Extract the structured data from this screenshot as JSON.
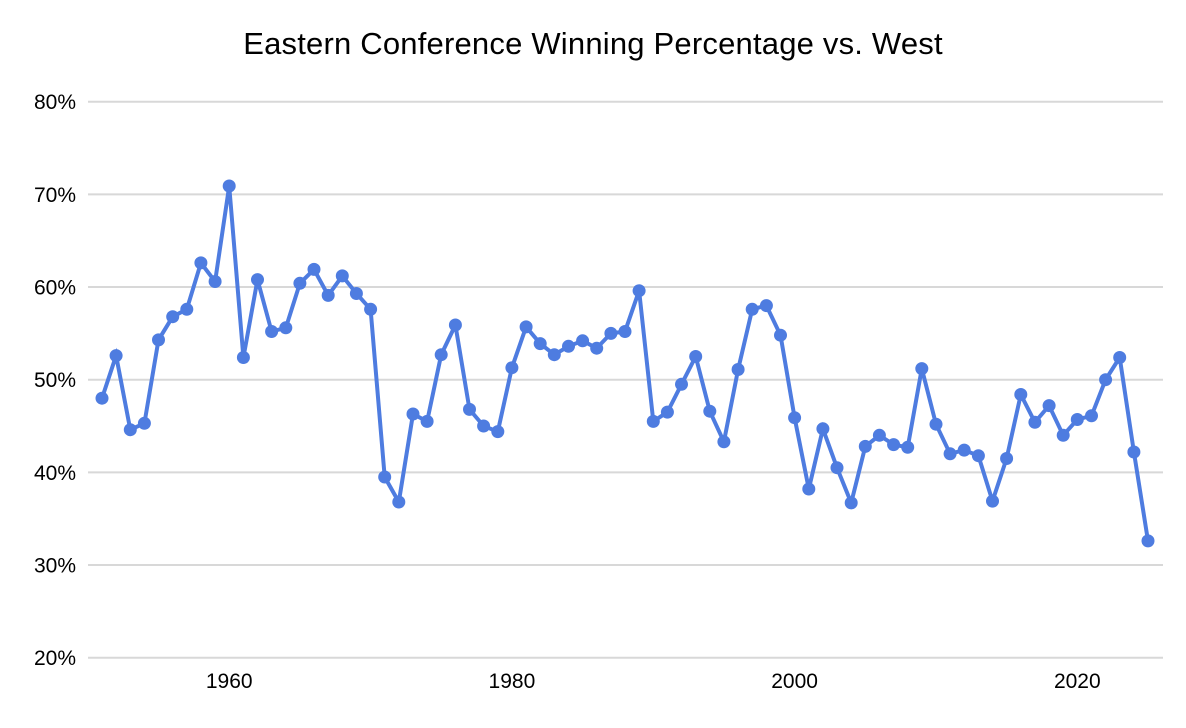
{
  "chart_data": {
    "type": "line",
    "title": "Eastern Conference Winning Percentage vs. West",
    "xlabel": "",
    "ylabel": "",
    "unit": "%",
    "series_name": "Eastern Conference winning percentage vs. West",
    "x": [
      1951,
      1952,
      1953,
      1954,
      1955,
      1956,
      1957,
      1958,
      1959,
      1960,
      1961,
      1962,
      1963,
      1964,
      1965,
      1966,
      1967,
      1968,
      1969,
      1970,
      1971,
      1972,
      1973,
      1974,
      1975,
      1976,
      1977,
      1978,
      1979,
      1980,
      1981,
      1982,
      1983,
      1984,
      1985,
      1986,
      1987,
      1988,
      1989,
      1990,
      1991,
      1992,
      1993,
      1994,
      1995,
      1996,
      1997,
      1998,
      1999,
      2000,
      2001,
      2002,
      2003,
      2004,
      2005,
      2006,
      2007,
      2008,
      2009,
      2010,
      2011,
      2012,
      2013,
      2014,
      2015,
      2016,
      2017,
      2018,
      2019,
      2020,
      2021,
      2022,
      2023,
      2024,
      2025
    ],
    "values": [
      48.0,
      52.6,
      44.6,
      45.3,
      54.3,
      56.8,
      57.6,
      62.6,
      60.6,
      70.9,
      52.4,
      60.8,
      55.2,
      55.6,
      60.4,
      61.9,
      59.1,
      61.2,
      59.3,
      57.6,
      39.5,
      36.8,
      46.3,
      45.5,
      52.7,
      55.9,
      46.8,
      45.0,
      44.4,
      51.3,
      55.7,
      53.9,
      52.7,
      53.6,
      54.2,
      53.4,
      55.0,
      55.2,
      59.6,
      45.5,
      46.5,
      49.5,
      52.5,
      46.6,
      43.3,
      51.1,
      57.6,
      58.0,
      54.8,
      45.9,
      38.2,
      44.7,
      40.5,
      36.7,
      42.8,
      44.0,
      43.0,
      42.7,
      51.2,
      45.2,
      42.0,
      42.4,
      41.8,
      36.9,
      41.5,
      48.4,
      45.4,
      47.2,
      44.0,
      45.7,
      46.1,
      50.0,
      52.4,
      42.2,
      32.6
    ],
    "ylim": [
      20,
      80
    ],
    "yticks": [
      80,
      70,
      60,
      50,
      40,
      30,
      20
    ],
    "ytick_labels": [
      "80%",
      "70%",
      "60%",
      "50%",
      "40%",
      "30%",
      "20%"
    ],
    "xticks": [
      1960,
      1980,
      2000,
      2020
    ],
    "xtick_labels": [
      "1960",
      "1980",
      "2000",
      "2020"
    ],
    "grid": "horizontal",
    "legend": "none",
    "colors": {
      "line": "#4e7ce0",
      "point": "#4e7ce0",
      "gridline": "#d8d8d8",
      "text": "#000000",
      "background": "#ffffff"
    }
  }
}
